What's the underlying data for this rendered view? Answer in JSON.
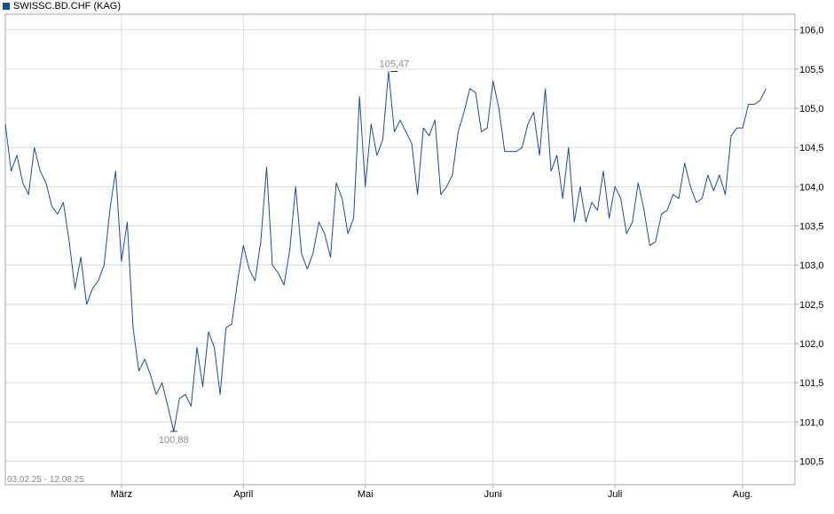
{
  "legend": {
    "label": "SWISSC.BD.CHF (KAG)"
  },
  "date_range": "03.02.25 - 12.08.25",
  "colors": {
    "series": "#1e4c9a",
    "grid": "#d9d9d9",
    "axis": "#aaaaaa",
    "annotation": "#8a8a8a",
    "background": "#ffffff"
  },
  "chart_data": {
    "type": "line",
    "title": "",
    "xlabel": "",
    "ylabel": "",
    "ylim": [
      100.2,
      106.2
    ],
    "xlim": [
      0,
      136
    ],
    "grid": true,
    "legend_position": "top-left",
    "y_ticks": [
      "100,5",
      "101,0",
      "101,5",
      "102,0",
      "102,5",
      "103,0",
      "103,5",
      "104,0",
      "104,5",
      "105,0",
      "105,5",
      "106,0"
    ],
    "y_tick_values": [
      100.5,
      101.0,
      101.5,
      102.0,
      102.5,
      103.0,
      103.5,
      104.0,
      104.5,
      105.0,
      105.5,
      106.0
    ],
    "x_ticks": [
      {
        "label": "März",
        "index": 20
      },
      {
        "label": "April",
        "index": 41
      },
      {
        "label": "Mai",
        "index": 62
      },
      {
        "label": "Juni",
        "index": 84
      },
      {
        "label": "Juli",
        "index": 105
      },
      {
        "label": "Aug.",
        "index": 127
      }
    ],
    "annotations": [
      {
        "label": "100,88",
        "index": 29,
        "value": 100.88,
        "kind": "min"
      },
      {
        "label": "105,47",
        "index": 67,
        "value": 105.47,
        "kind": "max"
      }
    ],
    "series": [
      {
        "name": "SWISSC.BD.CHF (KAG)",
        "values": [
          104.8,
          104.2,
          104.4,
          104.05,
          103.9,
          104.5,
          104.2,
          104.05,
          103.75,
          103.65,
          103.8,
          103.3,
          102.7,
          103.1,
          102.5,
          102.7,
          102.8,
          103.0,
          103.7,
          104.2,
          103.05,
          103.55,
          102.2,
          101.65,
          101.8,
          101.6,
          101.35,
          101.5,
          101.2,
          100.88,
          101.3,
          101.35,
          101.2,
          101.95,
          101.45,
          102.15,
          101.95,
          101.35,
          102.2,
          102.25,
          102.8,
          103.25,
          102.95,
          102.8,
          103.3,
          104.25,
          103.0,
          102.9,
          102.75,
          103.2,
          104.0,
          103.15,
          102.95,
          103.15,
          103.55,
          103.4,
          103.1,
          104.05,
          103.85,
          103.4,
          103.6,
          105.15,
          104.0,
          104.8,
          104.4,
          104.6,
          105.47,
          104.7,
          104.85,
          104.7,
          104.55,
          103.9,
          104.75,
          104.65,
          104.85,
          103.9,
          104.0,
          104.15,
          104.7,
          104.95,
          105.25,
          105.2,
          104.7,
          104.75,
          105.35,
          105.0,
          104.45,
          104.45,
          104.45,
          104.5,
          104.8,
          104.95,
          104.4,
          105.25,
          104.2,
          104.4,
          103.85,
          104.5,
          103.55,
          104.0,
          103.55,
          103.8,
          103.7,
          104.2,
          103.6,
          104.0,
          103.85,
          103.4,
          103.55,
          104.05,
          103.7,
          103.25,
          103.3,
          103.65,
          103.7,
          103.9,
          103.85,
          104.3,
          104.0,
          103.8,
          103.85,
          104.15,
          103.95,
          104.15,
          103.9,
          104.65,
          104.75,
          104.75,
          105.05,
          105.05,
          105.1,
          105.25
        ]
      }
    ]
  }
}
